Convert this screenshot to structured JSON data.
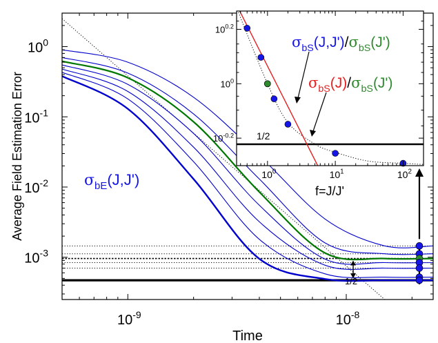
{
  "chart_data": [
    {
      "type": "line",
      "xlabel": "Time",
      "ylabel": "Average Field Estimation Error",
      "xscale": "log",
      "yscale": "log",
      "xlim": [
        5e-10,
        2.5e-08
      ],
      "ylim": [
        0.00025,
        3.0
      ],
      "x_ticks": [
        {
          "value": 1e-09,
          "base": "10",
          "exp": "-9"
        },
        {
          "value": 1e-08,
          "base": "10",
          "exp": "-8"
        }
      ],
      "y_ticks": [
        {
          "value": 1,
          "base": "10",
          "exp": "0"
        },
        {
          "value": 0.1,
          "base": "10",
          "exp": "-1"
        },
        {
          "value": 0.01,
          "base": "10",
          "exp": "-2"
        },
        {
          "value": 0.001,
          "base": "10",
          "exp": "-3"
        }
      ],
      "grid": false,
      "curve_label": {
        "greek": "σ",
        "sub": "bE",
        "args": "(J,J')",
        "color": "#1515e6"
      },
      "series": [
        {
          "color": "#0000cc",
          "role": "thin",
          "x": [
            5e-10,
            1e-09,
            2e-09,
            4e-09,
            8e-09,
            1.5e-08,
            2.5e-08
          ],
          "y": [
            0.9,
            0.6,
            0.19,
            0.028,
            0.0035,
            0.00145,
            0.00145
          ]
        },
        {
          "color": "#0000cc",
          "role": "thin",
          "x": [
            5e-10,
            1e-09,
            2e-09,
            4e-09,
            8e-09,
            1.5e-08,
            2.5e-08
          ],
          "y": [
            0.7,
            0.42,
            0.11,
            0.013,
            0.0016,
            0.00112,
            0.00112
          ]
        },
        {
          "color": "#007700",
          "role": "reference",
          "x": [
            5e-10,
            1e-09,
            2e-09,
            4e-09,
            8e-09,
            1.5e-08,
            2.5e-08
          ],
          "y": [
            0.62,
            0.36,
            0.085,
            0.0085,
            0.00115,
            0.00096,
            0.00096
          ]
        },
        {
          "color": "#0000cc",
          "role": "thin",
          "x": [
            5e-10,
            1e-09,
            2e-09,
            4e-09,
            8e-09,
            1.5e-08,
            2.5e-08
          ],
          "y": [
            0.55,
            0.29,
            0.058,
            0.0055,
            0.00094,
            0.00084,
            0.00084
          ]
        },
        {
          "color": "#0000cc",
          "role": "thin",
          "x": [
            5e-10,
            1e-09,
            2e-09,
            4e-09,
            8e-09,
            1.5e-08,
            2.5e-08
          ],
          "y": [
            0.48,
            0.23,
            0.037,
            0.0032,
            0.00077,
            0.0007,
            0.0007
          ]
        },
        {
          "color": "#0000cc",
          "role": "thin",
          "x": [
            5e-10,
            1e-09,
            2e-09,
            4e-09,
            8e-09,
            1.5e-08,
            2.5e-08
          ],
          "y": [
            0.43,
            0.18,
            0.023,
            0.0018,
            0.00058,
            0.00052,
            0.00052
          ]
        },
        {
          "color": "#0000cc",
          "role": "thick",
          "x": [
            5e-10,
            1e-09,
            2e-09,
            4e-09,
            8e-09,
            1.5e-08,
            2.5e-08
          ],
          "y": [
            0.38,
            0.13,
            0.013,
            0.00095,
            0.00049,
            0.00047,
            0.00047
          ]
        }
      ],
      "asymptote_lines": [
        {
          "y": 0.00145,
          "style": "dotted"
        },
        {
          "y": 0.00112,
          "style": "dotted"
        },
        {
          "y": 0.00096,
          "style": "dashed"
        },
        {
          "y": 0.00084,
          "style": "dotted"
        },
        {
          "y": 0.0007,
          "style": "dotted"
        },
        {
          "y": 0.00047,
          "style": "solid-thick"
        }
      ],
      "reference_line": {
        "style": "dotted",
        "x": [
          5e-10,
          1.5e-08
        ],
        "y": [
          2.5,
          0.00025
        ]
      },
      "marker_points": [
        {
          "y": 0.00145,
          "color": "#1515e6"
        },
        {
          "y": 0.00112,
          "color": "#1515e6"
        },
        {
          "y": 0.00096,
          "color": "#2f8a2f"
        },
        {
          "y": 0.00084,
          "color": "#1515e6"
        },
        {
          "y": 0.0007,
          "color": "#1515e6"
        },
        {
          "y": 0.00052,
          "color": "#1515e6"
        },
        {
          "y": 0.00047,
          "color": "#1515e6"
        }
      ],
      "half_annotation": "1/2"
    },
    {
      "type": "scatter",
      "inset": true,
      "xlabel": "f=J/J'",
      "xscale": "log",
      "yscale": "log",
      "xlim": [
        0.35,
        200
      ],
      "ylim": [
        0.5,
        1.85
      ],
      "x_ticks": [
        {
          "value": 1,
          "base": "10",
          "exp": "0"
        },
        {
          "value": 10,
          "base": "10",
          "exp": "1"
        },
        {
          "value": 100,
          "base": "10",
          "exp": "2"
        }
      ],
      "y_ticks": [
        {
          "value": 1.585,
          "base": "10",
          "exp": "0.2"
        },
        {
          "value": 1.0,
          "base": "10",
          "exp": "0"
        },
        {
          "value": 0.631,
          "base": "10",
          "exp": "-0.2"
        }
      ],
      "blue_points": {
        "x": [
          0.5,
          0.8,
          1.0,
          1.25,
          2.0,
          10,
          100
        ],
        "y": [
          1.6,
          1.25,
          1.0,
          0.88,
          0.71,
          0.555,
          0.51
        ]
      },
      "green_point": {
        "x": 1.0,
        "y": 1.0
      },
      "red_line": {
        "x": [
          0.35,
          5.5
        ],
        "y": [
          1.95,
          0.5
        ]
      },
      "dotted_curve": {
        "x": [
          0.35,
          1,
          2,
          5,
          10,
          30,
          100,
          200
        ],
        "y": [
          1.9,
          1.0,
          0.72,
          0.6,
          0.56,
          0.52,
          0.51,
          0.505
        ]
      },
      "half_line": {
        "y": 0.5,
        "label": "1/2"
      },
      "legend": [
        {
          "parts": [
            {
              "greek": "σ",
              "sub": "bS",
              "args": "(J,J')",
              "color": "#1515e6"
            },
            {
              "text": "/",
              "color": "#000000"
            },
            {
              "greek": "σ",
              "sub": "bS",
              "args": "(J')",
              "color": "#2f8a2f"
            }
          ]
        },
        {
          "parts": [
            {
              "greek": "σ",
              "sub": "bS",
              "args": "(J)",
              "color": "#e62020"
            },
            {
              "text": "/",
              "color": "#000000"
            },
            {
              "greek": "σ",
              "sub": "bS",
              "args": "(J')",
              "color": "#2f8a2f"
            }
          ]
        }
      ]
    }
  ]
}
